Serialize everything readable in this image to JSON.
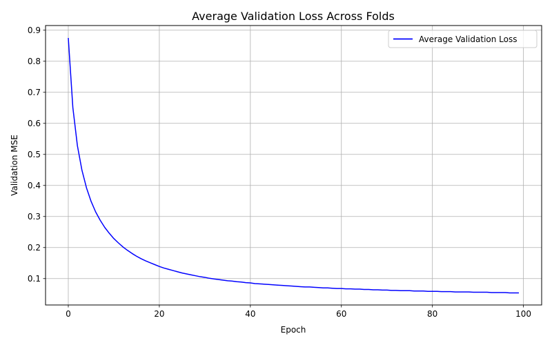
{
  "chart_data": {
    "type": "line",
    "title": "Average Validation Loss Across Folds",
    "xlabel": "Epoch",
    "ylabel": "Validation MSE",
    "xlim": [
      -5,
      104
    ],
    "ylim": [
      0.015,
      0.915
    ],
    "xticks": [
      0,
      20,
      40,
      60,
      80,
      100
    ],
    "yticks": [
      0.1,
      0.2,
      0.3,
      0.4,
      0.5,
      0.6,
      0.7,
      0.8,
      0.9
    ],
    "grid": true,
    "legend_position": "top-right",
    "series": [
      {
        "name": "Average Validation Loss",
        "color": "#0000ff",
        "x": [
          0,
          1,
          2,
          3,
          4,
          5,
          6,
          7,
          8,
          9,
          10,
          11,
          12,
          13,
          14,
          15,
          16,
          17,
          18,
          19,
          20,
          21,
          22,
          23,
          24,
          25,
          26,
          27,
          28,
          29,
          30,
          31,
          32,
          33,
          34,
          35,
          36,
          37,
          38,
          39,
          40,
          41,
          42,
          43,
          44,
          45,
          46,
          47,
          48,
          49,
          50,
          51,
          52,
          53,
          54,
          55,
          56,
          57,
          58,
          59,
          60,
          61,
          62,
          63,
          64,
          65,
          66,
          67,
          68,
          69,
          70,
          71,
          72,
          73,
          74,
          75,
          76,
          77,
          78,
          79,
          80,
          81,
          82,
          83,
          84,
          85,
          86,
          87,
          88,
          89,
          90,
          91,
          92,
          93,
          94,
          95,
          96,
          97,
          98,
          99
        ],
        "y": [
          0.875,
          0.651,
          0.528,
          0.449,
          0.392,
          0.349,
          0.315,
          0.288,
          0.265,
          0.246,
          0.229,
          0.215,
          0.202,
          0.191,
          0.181,
          0.172,
          0.164,
          0.157,
          0.151,
          0.145,
          0.139,
          0.134,
          0.13,
          0.126,
          0.122,
          0.118,
          0.115,
          0.112,
          0.109,
          0.106,
          0.104,
          0.101,
          0.099,
          0.097,
          0.095,
          0.093,
          0.092,
          0.09,
          0.089,
          0.087,
          0.086,
          0.084,
          0.083,
          0.082,
          0.081,
          0.08,
          0.079,
          0.078,
          0.077,
          0.076,
          0.075,
          0.074,
          0.073,
          0.073,
          0.072,
          0.071,
          0.07,
          0.07,
          0.069,
          0.068,
          0.068,
          0.067,
          0.067,
          0.066,
          0.066,
          0.065,
          0.065,
          0.064,
          0.064,
          0.063,
          0.063,
          0.062,
          0.062,
          0.061,
          0.061,
          0.061,
          0.06,
          0.06,
          0.06,
          0.059,
          0.059,
          0.059,
          0.058,
          0.058,
          0.058,
          0.057,
          0.057,
          0.057,
          0.057,
          0.056,
          0.056,
          0.056,
          0.056,
          0.055,
          0.055,
          0.055,
          0.055,
          0.054,
          0.054,
          0.054
        ]
      }
    ]
  }
}
